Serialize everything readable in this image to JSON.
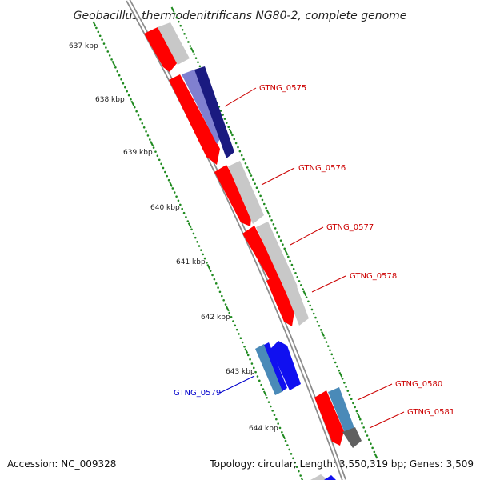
{
  "title": "Geobacillus thermodenitrificans NG80-2, complete genome",
  "footer": {
    "accession": "Accession: NC_009328",
    "summary": "Topology: circular; Length: 3,550,319 bp; Genes: 3,509"
  },
  "axis": {
    "unit": "kbp",
    "ticks": [
      "637 kbp",
      "638 kbp",
      "639 kbp",
      "640 kbp",
      "641 kbp",
      "642 kbp",
      "643 kbp",
      "644 kbp"
    ]
  },
  "colors": {
    "backbone": "#8c8c8c",
    "forward_strand_gene": "#ff0000",
    "gray_gene": "#c8c8c8",
    "navy_gene": "#1a1a80",
    "light_purple_gene": "#8080d0",
    "blue_gene": "#1010f0",
    "steel_blue_gene": "#4a8ab8",
    "dark_gray_gene": "#606060",
    "tick_green": "#1f8a1f",
    "label_red": "#cc0000",
    "label_blue": "#0000cc"
  },
  "gene_labels": [
    {
      "id": "GTNG_0575",
      "color": "#cc0000"
    },
    {
      "id": "GTNG_0576",
      "color": "#cc0000"
    },
    {
      "id": "GTNG_0577",
      "color": "#cc0000"
    },
    {
      "id": "GTNG_0578",
      "color": "#cc0000"
    },
    {
      "id": "GTNG_0579",
      "color": "#0000cc"
    },
    {
      "id": "GTNG_0580",
      "color": "#cc0000"
    },
    {
      "id": "GTNG_0581",
      "color": "#cc0000"
    }
  ]
}
